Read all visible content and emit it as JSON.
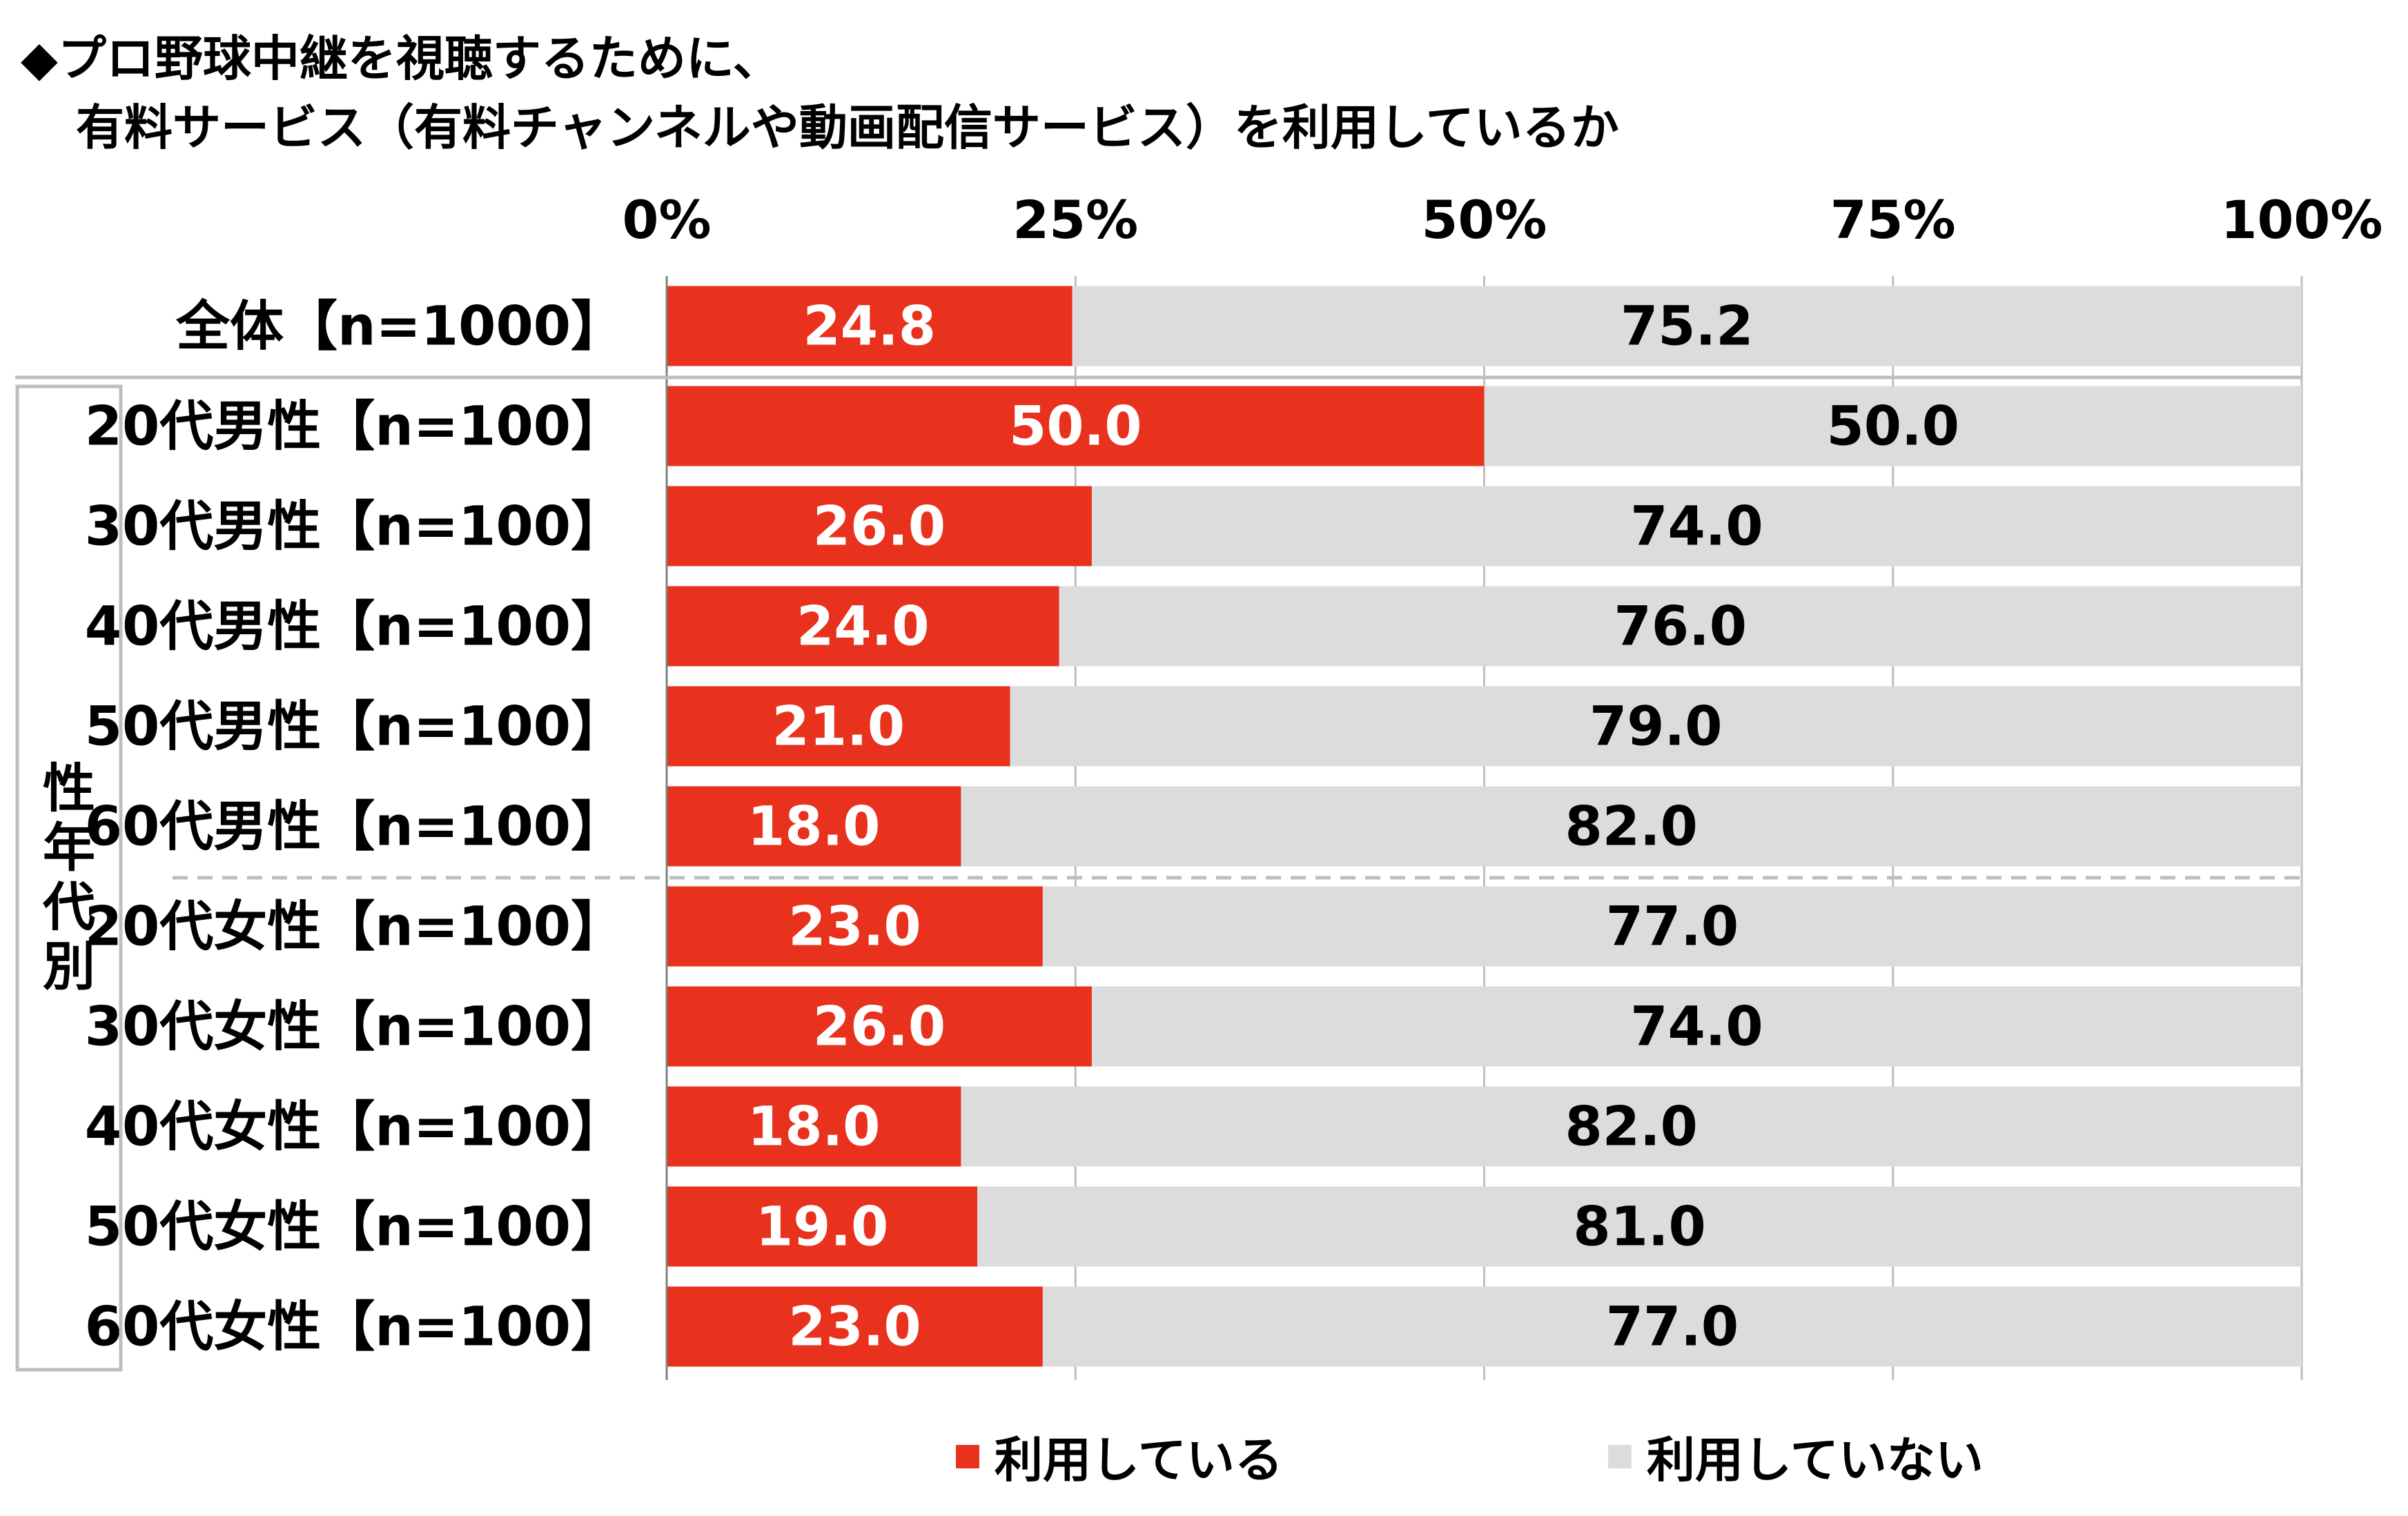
{
  "title": {
    "line1": "◆プロ野球中継を視聴するために、",
    "line2": "有料サービス（有料チャンネルや動画配信サービス）を利用しているか"
  },
  "group_label": "性年代別",
  "colors": {
    "used": "#E8321D",
    "not_used": "#DCDCDC",
    "grid": "#BEBEBE"
  },
  "chart_data": {
    "type": "bar",
    "orientation": "horizontal",
    "stacked": true,
    "percent_stacked": true,
    "xlim": [
      0,
      100
    ],
    "xticks": [
      "0%",
      "25%",
      "50%",
      "75%",
      "100%"
    ],
    "legend_position": "bottom",
    "categories": [
      "全体【n=1000】",
      "20代男性【n=100】",
      "30代男性【n=100】",
      "40代男性【n=100】",
      "50代男性【n=100】",
      "60代男性【n=100】",
      "20代女性【n=100】",
      "30代女性【n=100】",
      "40代女性【n=100】",
      "50代女性【n=100】",
      "60代女性【n=100】"
    ],
    "series": [
      {
        "name": "利用している",
        "color": "#E8321D",
        "label_color": "#FFFFFF",
        "values": [
          "24.8",
          "50.0",
          "26.0",
          "24.0",
          "21.0",
          "18.0",
          "23.0",
          "26.0",
          "18.0",
          "19.0",
          "23.0"
        ]
      },
      {
        "name": "利用していない",
        "color": "#DCDCDC",
        "label_color": "#000000",
        "values": [
          "75.2",
          "50.0",
          "74.0",
          "76.0",
          "79.0",
          "82.0",
          "77.0",
          "74.0",
          "82.0",
          "81.0",
          "77.0"
        ]
      }
    ]
  }
}
